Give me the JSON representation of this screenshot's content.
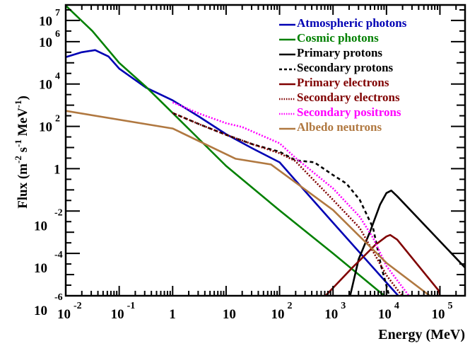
{
  "chart_data": {
    "type": "line",
    "title": "",
    "xlabel": "Energy (MeV)",
    "ylabel": {
      "base": "Flux (m",
      "e1": "-2",
      "mid1": " s",
      "e2": "-1",
      "mid2": " MeV",
      "e3": "-1",
      "end": ")"
    },
    "x_scale": "log",
    "y_scale": "log",
    "xlim": [
      0.01,
      295000
    ],
    "ylim": [
      1e-06,
      54000000
    ],
    "grid": false,
    "legend_position": "top-right",
    "x_ticks": [
      {
        "value": 0.01,
        "base": "10",
        "exp": "-2"
      },
      {
        "value": 0.1,
        "base": "10",
        "exp": "-1"
      },
      {
        "value": 1,
        "base": "1",
        "exp": ""
      },
      {
        "value": 10,
        "base": "10",
        "exp": ""
      },
      {
        "value": 100,
        "base": "10",
        "exp": "2"
      },
      {
        "value": 1000,
        "base": "10",
        "exp": "3"
      },
      {
        "value": 10000,
        "base": "10",
        "exp": "4"
      },
      {
        "value": 100000,
        "base": "10",
        "exp": "5"
      }
    ],
    "y_ticks": [
      {
        "value": 10000000,
        "base": "10",
        "exp": "7"
      },
      {
        "value": 1000000,
        "base": "10",
        "exp": "6"
      },
      {
        "value": 10000,
        "base": "10",
        "exp": "4"
      },
      {
        "value": 100,
        "base": "10",
        "exp": "2"
      },
      {
        "value": 1,
        "base": "1",
        "exp": ""
      },
      {
        "value": 0.01,
        "base": "10",
        "exp": "-2"
      },
      {
        "value": 0.0001,
        "base": "10",
        "exp": "-4"
      },
      {
        "value": 1e-06,
        "base": "10",
        "exp": "-6"
      }
    ],
    "series": [
      {
        "name": "Atmospheric photons",
        "color": "#0000b4",
        "style": "solid",
        "log10_x": [
          -2,
          -1.7,
          -1.45,
          -1.2,
          -1,
          -0.5,
          0,
          0.5,
          1,
          1.5,
          2,
          2.29,
          3,
          4,
          4.22
        ],
        "log10_y": [
          5.27,
          5.5,
          5.6,
          5.3,
          4.73,
          3.83,
          3.23,
          2.45,
          1.63,
          0.95,
          0.3,
          -0.53,
          -2.55,
          -5.38,
          -6
        ]
      },
      {
        "name": "Cosmic photons",
        "color": "#008000",
        "style": "solid",
        "log10_x": [
          -2,
          -1.5,
          -1,
          -0.5,
          0,
          1,
          2,
          3,
          3.96
        ],
        "log10_y": [
          7.7,
          6.5,
          5.0,
          3.87,
          2.63,
          0.13,
          -1.97,
          -4.0,
          -6
        ]
      },
      {
        "name": "Primary protons",
        "color": "#000000",
        "style": "solid",
        "log10_x": [
          3.32,
          3.48,
          3.7,
          3.88,
          4.0,
          4.09,
          4.2,
          5.48
        ],
        "log10_y": [
          -6,
          -4.27,
          -2.93,
          -1.7,
          -1.15,
          -1.03,
          -1.3,
          -4.7
        ]
      },
      {
        "name": "Secondary protons",
        "color": "#000000",
        "style": "dashed",
        "log10_x": [
          0,
          0.5,
          1,
          1.5,
          2,
          2.3,
          2.65,
          3,
          3.25,
          3.5,
          3.75,
          3.9,
          4.05
        ],
        "log10_y": [
          2.63,
          2.1,
          1.6,
          1.15,
          0.8,
          0.4,
          0.3,
          -0.3,
          -0.7,
          -1.47,
          -2.8,
          -4.6,
          -6
        ]
      },
      {
        "name": "Primary electrons",
        "color": "#800000",
        "style": "solid",
        "log10_x": [
          2.86,
          3.35,
          3.79,
          4.0,
          4.07,
          4.2,
          4.98,
          5.0
        ],
        "log10_y": [
          -6,
          -4.7,
          -3.6,
          -3.2,
          -3.13,
          -3.35,
          -5.77,
          -6
        ]
      },
      {
        "name": "Secondary electrons",
        "color": "#800000",
        "style": "dotted",
        "log10_x": [
          0,
          0.5,
          1,
          1.5,
          2,
          2.29,
          3,
          3.5,
          4,
          4.29
        ],
        "log10_y": [
          2.63,
          2.1,
          1.6,
          1.15,
          0.73,
          0.37,
          -1.47,
          -2.8,
          -5.03,
          -6
        ]
      },
      {
        "name": "Secondary positrons",
        "color": "#ff00ff",
        "style": "dotted",
        "log10_x": [
          0,
          0.5,
          1,
          1.3,
          2,
          2.29,
          3,
          3.5,
          3.75,
          4,
          4.42
        ],
        "log10_y": [
          3.13,
          2.6,
          2.15,
          1.97,
          1.2,
          0.53,
          -0.93,
          -2.27,
          -3.27,
          -4.6,
          -6
        ]
      },
      {
        "name": "Albedo neutrons",
        "color": "#b07840",
        "style": "solid",
        "log10_x": [
          -2,
          0,
          1.18,
          1.84,
          3,
          4,
          4.81
        ],
        "log10_y": [
          2.73,
          1.9,
          0.47,
          0.2,
          -1.95,
          -4.45,
          -6
        ]
      }
    ]
  }
}
